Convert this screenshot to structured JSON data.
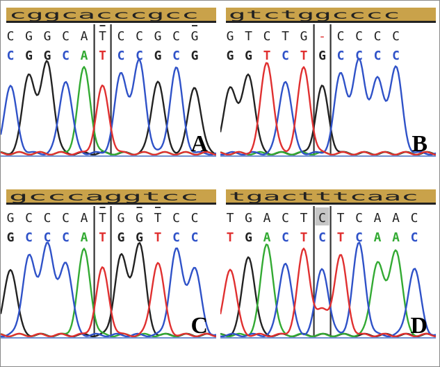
{
  "colors": {
    "A": "#33aa33",
    "C": "#2f52c8",
    "G": "#222222",
    "T": "#e03030",
    "reference_bar": "#c9a24a",
    "highlight": "#b8b8b8"
  },
  "panels": [
    {
      "letter": "A",
      "reference": "cggcacccgcc",
      "sequence": "CGGCATCCGCG",
      "called": "CGGCATCCGCG",
      "marker_index": 5,
      "mark_diffs": true,
      "highlight_index": null
    },
    {
      "letter": "B",
      "reference": "gtctggcccc",
      "sequence": "GTCTG-CCCC",
      "called": "GGTCTGCCCC",
      "marker_index": 5,
      "mark_diffs": false,
      "highlight_index": null
    },
    {
      "letter": "C",
      "reference": "gcccaggtcc",
      "sequence": "GCCCATGGTCC",
      "called": "GCCCATGGTCC",
      "marker_index": 5,
      "mark_diffs": true,
      "highlight_index": null
    },
    {
      "letter": "D",
      "reference": "tgactttcaac",
      "sequence": "TGACTCTCAAC",
      "called": "TGACTCTCAAC",
      "marker_index": 5,
      "mark_diffs": false,
      "highlight_index": 5
    }
  ]
}
